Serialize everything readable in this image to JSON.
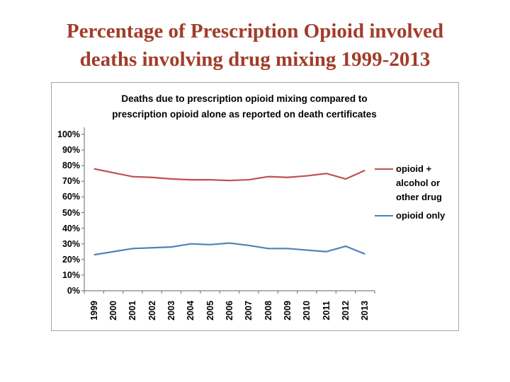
{
  "slide": {
    "title_line1": "Percentage of Prescription Opioid involved",
    "title_line2": "deaths involving drug mixing 1999-2013",
    "title_color": "#a23c2a"
  },
  "chart_data": {
    "type": "line",
    "title": "Deaths due to prescription opioid mixing compared to prescription opioid alone as reported on death certificates",
    "title_line1": "Deaths due to prescription opioid mixing compared to",
    "title_line2": "prescription opioid alone as reported on death certificates",
    "categories": [
      "1999",
      "2000",
      "2001",
      "2002",
      "2003",
      "2004",
      "2005",
      "2006",
      "2007",
      "2008",
      "2009",
      "2010",
      "2011",
      "2012",
      "2013"
    ],
    "yticks": [
      "100%",
      "90%",
      "80%",
      "70%",
      "60%",
      "50%",
      "40%",
      "30%",
      "20%",
      "10%",
      "0%"
    ],
    "ylim": [
      0,
      100
    ],
    "grid": false,
    "legend_position": "right",
    "axis_color": "#808080",
    "series": [
      {
        "name": "opioid + alcohol or other drug",
        "color": "#c0504d",
        "values": [
          78,
          75.5,
          73,
          72.5,
          71.5,
          71,
          71,
          70.5,
          71,
          73,
          72.5,
          73.5,
          75,
          71.5,
          77
        ]
      },
      {
        "name": "opioid only",
        "color": "#4f81bd",
        "values": [
          23,
          25,
          27,
          27.5,
          28,
          30,
          29.5,
          30.5,
          29,
          27,
          27,
          26,
          25,
          28.5,
          23.5
        ]
      }
    ]
  }
}
